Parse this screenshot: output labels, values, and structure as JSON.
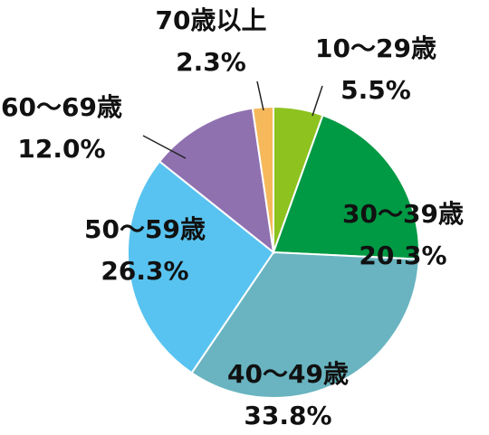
{
  "chart_data": {
    "type": "pie",
    "categories": [
      "10〜29歳",
      "30〜39歳",
      "40〜49歳",
      "50〜59歳",
      "60〜69歳",
      "70歳以上"
    ],
    "values": [
      5.5,
      20.3,
      33.8,
      26.3,
      12.0,
      2.3
    ],
    "value_labels": [
      "5.5%",
      "20.3%",
      "33.8%",
      "26.3%",
      "12.0%",
      "2.3%"
    ],
    "colors": [
      "#8dc21f",
      "#009944",
      "#69b4c0",
      "#58c3f0",
      "#8f71b0",
      "#f5b95b"
    ]
  }
}
